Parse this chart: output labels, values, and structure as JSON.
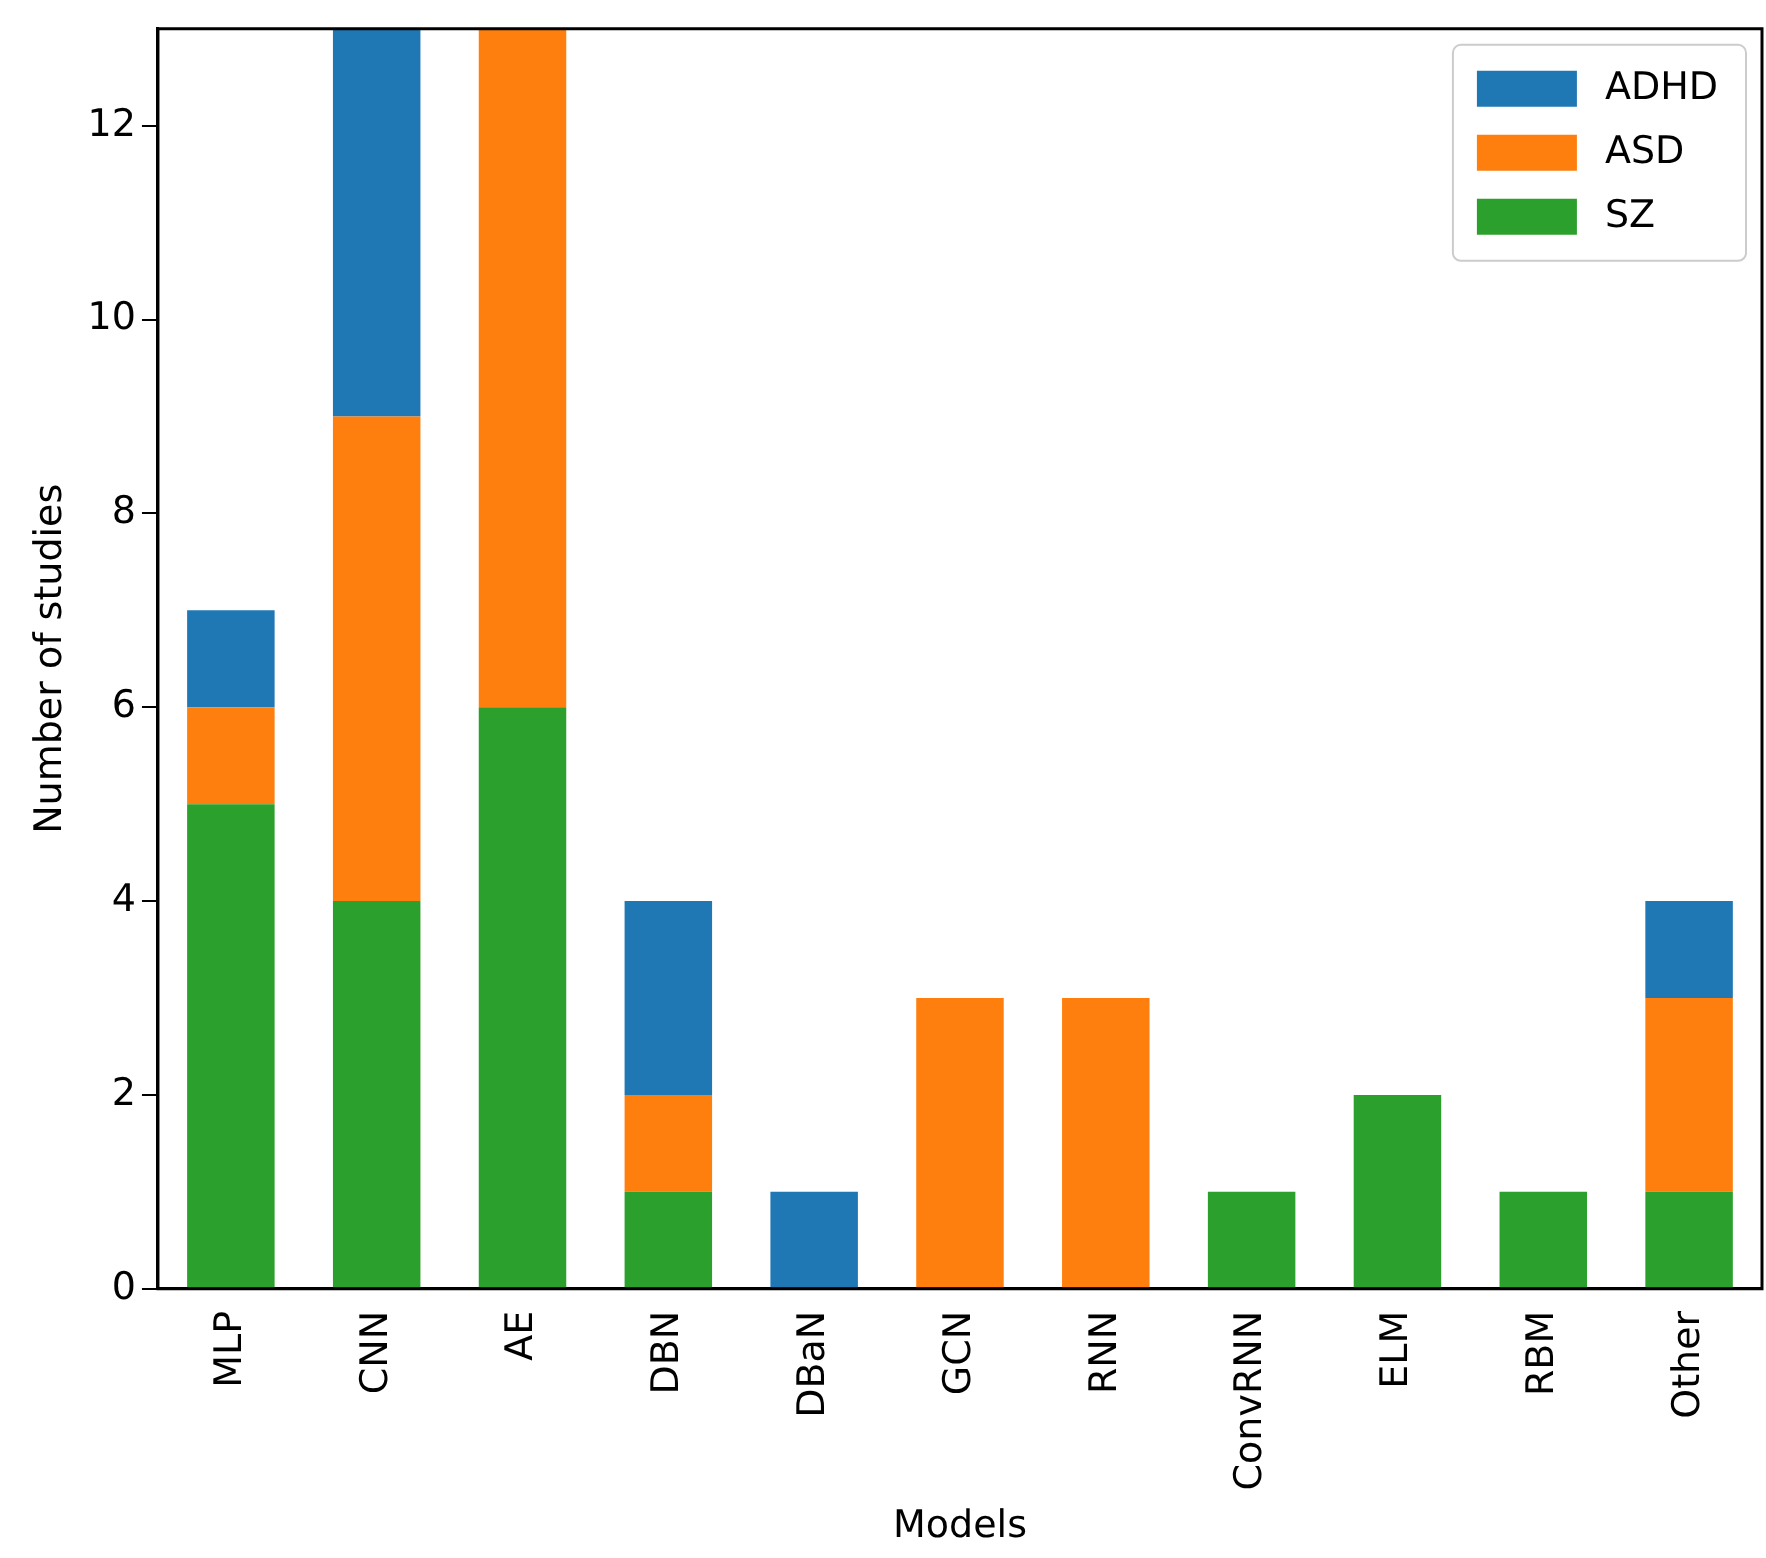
{
  "chart_data": {
    "type": "bar",
    "stacked": true,
    "xlabel": "Models",
    "ylabel": "Number of studies",
    "categories": [
      "MLP",
      "CNN",
      "AE",
      "DBN",
      "DBaN",
      "GCN",
      "RNN",
      "ConvRNN",
      "ELM",
      "RBM",
      "Other"
    ],
    "series": [
      {
        "name": "SZ",
        "color": "#2ca02c",
        "values": [
          5,
          4,
          6,
          1,
          0,
          0,
          0,
          1,
          2,
          1,
          1
        ]
      },
      {
        "name": "ASD",
        "color": "#ff7f0e",
        "values": [
          1,
          5,
          7,
          1,
          0,
          3,
          3,
          0,
          0,
          0,
          2
        ]
      },
      {
        "name": "ADHD",
        "color": "#1f77b4",
        "values": [
          1,
          4,
          0,
          2,
          1,
          0,
          0,
          0,
          0,
          0,
          1
        ]
      }
    ],
    "ylim": [
      0,
      13
    ],
    "yticks": [
      0,
      2,
      4,
      6,
      8,
      10,
      12
    ],
    "grid": false,
    "legend": "top right"
  }
}
